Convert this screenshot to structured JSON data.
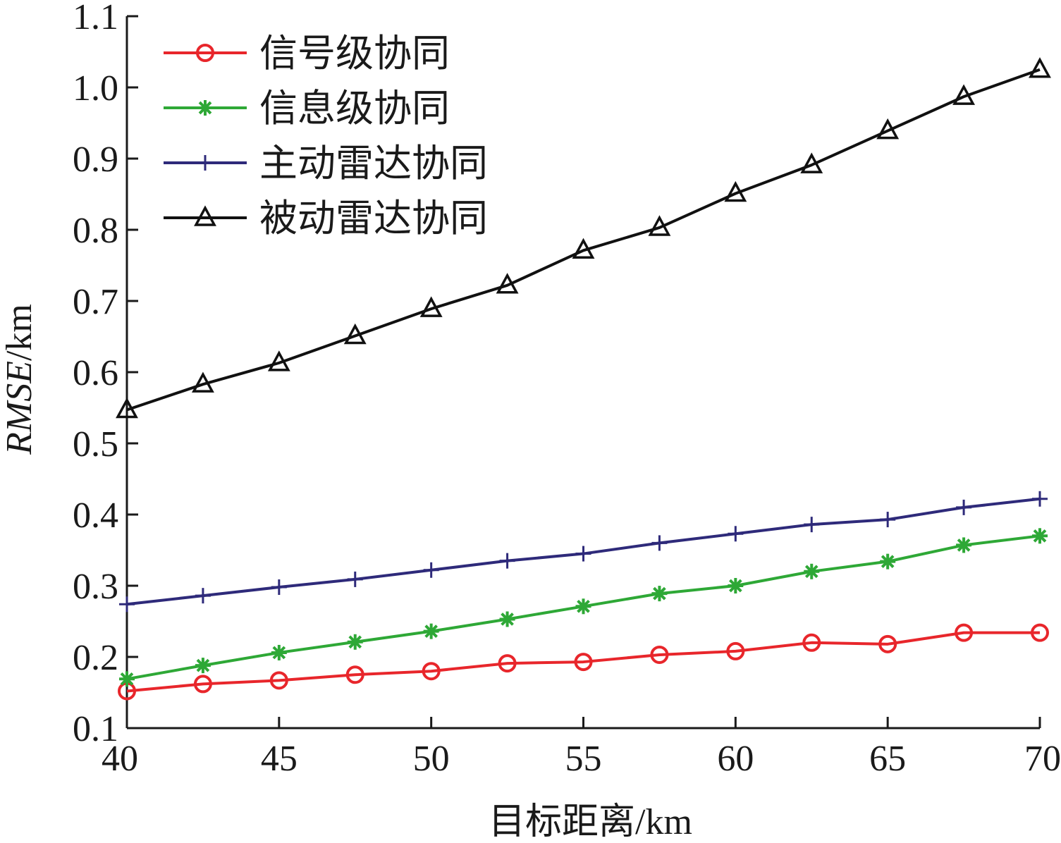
{
  "chart_data": {
    "type": "line",
    "xlabel": "目标距离/km",
    "ylabel_italic": "RMSE",
    "ylabel_unit": "/km",
    "xlim": [
      40,
      70
    ],
    "ylim": [
      0.1,
      1.1
    ],
    "xticks": [
      40,
      45,
      50,
      55,
      60,
      65,
      70
    ],
    "xtick_labels": [
      "40",
      "45",
      "50",
      "55",
      "60",
      "65",
      "70"
    ],
    "yticks": [
      0.1,
      0.2,
      0.3,
      0.4,
      0.5,
      0.6,
      0.7,
      0.8,
      0.9,
      1.0,
      1.1
    ],
    "ytick_labels": [
      "0.1",
      "0.2",
      "0.3",
      "0.4",
      "0.5",
      "0.6",
      "0.7",
      "0.8",
      "0.9",
      "1.0",
      "1.1"
    ],
    "grid": false,
    "legend_position": "top-left",
    "x": [
      40,
      42.5,
      45,
      47.5,
      50,
      52.5,
      55,
      57.5,
      60,
      62.5,
      65,
      67.5,
      70
    ],
    "series": [
      {
        "name": "信号级协同",
        "color": "#e8262b",
        "marker": "circle",
        "values": [
          0.152,
          0.162,
          0.167,
          0.175,
          0.18,
          0.191,
          0.193,
          0.203,
          0.208,
          0.22,
          0.218,
          0.234,
          0.234
        ]
      },
      {
        "name": "信息级协同",
        "color": "#2ea836",
        "marker": "asterisk",
        "values": [
          0.169,
          0.188,
          0.206,
          0.221,
          0.236,
          0.253,
          0.271,
          0.289,
          0.3,
          0.32,
          0.334,
          0.357,
          0.37
        ]
      },
      {
        "name": "主动雷达协同",
        "color": "#2e2a7a",
        "marker": "plus",
        "values": [
          0.274,
          0.286,
          0.298,
          0.309,
          0.322,
          0.335,
          0.345,
          0.36,
          0.373,
          0.386,
          0.393,
          0.41,
          0.422
        ]
      },
      {
        "name": "被动雷达协同",
        "color": "#111111",
        "marker": "triangle",
        "values": [
          0.547,
          0.583,
          0.613,
          0.651,
          0.689,
          0.722,
          0.771,
          0.803,
          0.851,
          0.891,
          0.939,
          0.987,
          1.025
        ]
      }
    ]
  }
}
